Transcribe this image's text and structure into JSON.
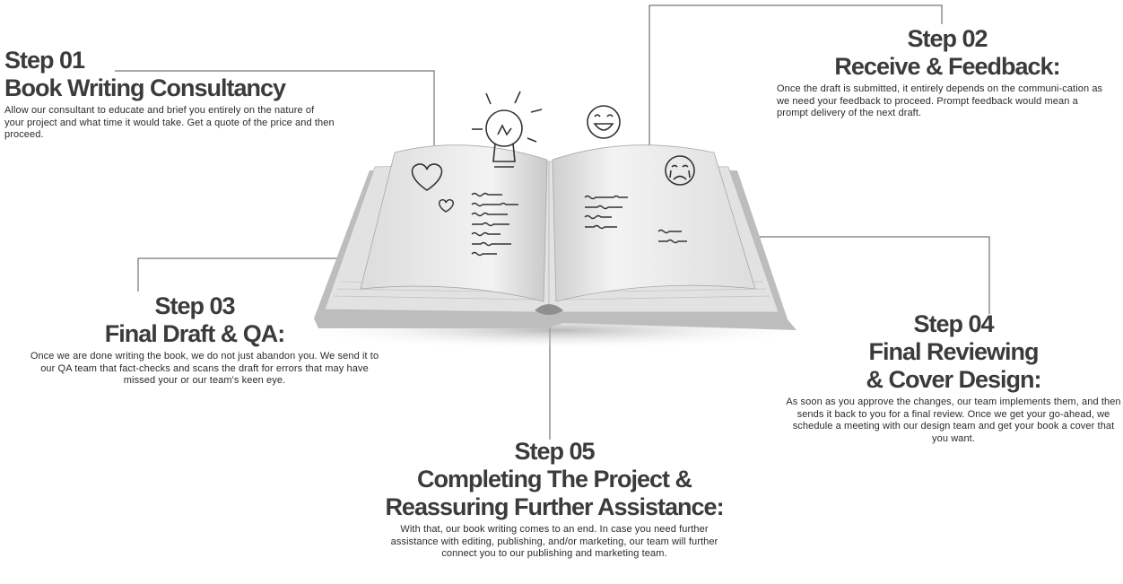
{
  "steps": [
    {
      "number": "Step 01",
      "title_lines": [
        "Book Writing Consultancy"
      ],
      "description": "Allow our consultant to educate and brief you entirely on the nature of your project and what time it would take. Get a quote of the price and then proceed."
    },
    {
      "number": "Step 02",
      "title_lines": [
        "Receive & Feedback:"
      ],
      "description": "Once the draft is submitted, it entirely depends on the communi-cation as we need your feedback to proceed. Prompt feedback would mean a prompt delivery of the next draft."
    },
    {
      "number": "Step 03",
      "title_lines": [
        "Final Draft & QA:"
      ],
      "description": "Once we are done writing the book, we do not just abandon you. We send it to our QA team that fact-checks and scans the draft for errors that may have missed your or our team's keen eye."
    },
    {
      "number": "Step 04",
      "title_lines": [
        "Final Reviewing",
        "& Cover Design:"
      ],
      "description": "As soon as you approve the changes, our team implements them, and then sends it back to you for a final review. Once we get your go-ahead, we schedule a meeting with our design team and get your book a cover that you want."
    },
    {
      "number": "Step 05",
      "title_lines": [
        "Completing The Project &",
        "Reassuring Further Assistance:"
      ],
      "description": "With that, our book writing comes to an end. In case you need further assistance with editing, publishing, and/or marketing, our team will further connect you to our publishing and marketing team."
    }
  ],
  "illustration": {
    "subject": "open-book",
    "icons": [
      "heart-icon",
      "small-heart-icon",
      "lightbulb-icon",
      "laughing-face-icon",
      "crying-face-icon"
    ]
  },
  "colors": {
    "heading": "#3b3b3b",
    "body_text": "#2a2a2a",
    "connector_line": "#555555",
    "background": "#ffffff"
  }
}
